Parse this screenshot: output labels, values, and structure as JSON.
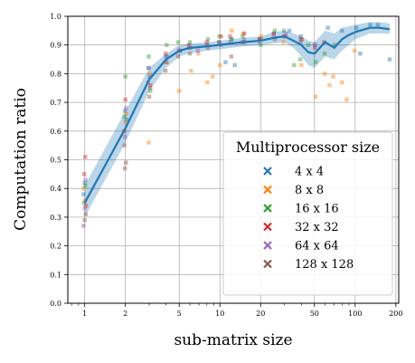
{
  "chart_data": {
    "type": "scatter",
    "xlabel": "sub-matrix size",
    "ylabel": "Computation ratio",
    "xscale": "log",
    "xlim": [
      0.75,
      210
    ],
    "ylim": [
      0,
      1
    ],
    "xticks": [
      1,
      2,
      5,
      10,
      20,
      50,
      100,
      200
    ],
    "xtick_labels": [
      "1",
      "2",
      "5",
      "10",
      "20",
      "50",
      "100",
      "200"
    ],
    "yticks": [
      0,
      0.1,
      0.2,
      0.3,
      0.4,
      0.5,
      0.6,
      0.7,
      0.8,
      0.9,
      1.0
    ],
    "ytick_labels": [
      "0.0",
      "0.1",
      "0.2",
      "0.3",
      "0.4",
      "0.5",
      "0.6",
      "0.7",
      "0.8",
      "0.9",
      "1.0"
    ],
    "grid": true,
    "legend": {
      "title": "Multiprocessor size",
      "placement": "lower-right",
      "marker": "x"
    },
    "series": [
      {
        "name": "4 x 4",
        "color": "#1f77b4",
        "points": [
          [
            1,
            0.38
          ],
          [
            1,
            0.42
          ],
          [
            2,
            0.64
          ],
          [
            2,
            0.67
          ],
          [
            3,
            0.79
          ],
          [
            3,
            0.82
          ],
          [
            4,
            0.86
          ],
          [
            5,
            0.88
          ],
          [
            6,
            0.89
          ],
          [
            8,
            0.9
          ],
          [
            10,
            0.91
          ],
          [
            11,
            0.84
          ],
          [
            12,
            0.92
          ],
          [
            13,
            0.83
          ],
          [
            15,
            0.91
          ],
          [
            20,
            0.92
          ],
          [
            25,
            0.94
          ],
          [
            32,
            0.95
          ],
          [
            40,
            0.93
          ],
          [
            50,
            0.9
          ],
          [
            64,
            0.96
          ],
          [
            80,
            0.95
          ],
          [
            100,
            0.96
          ],
          [
            110,
            0.87
          ],
          [
            128,
            0.97
          ],
          [
            150,
            0.97
          ],
          [
            180,
            0.85
          ]
        ]
      },
      {
        "name": "8 x 8",
        "color": "#ff7f0e",
        "points": [
          [
            1,
            0.36
          ],
          [
            1,
            0.4
          ],
          [
            2,
            0.63
          ],
          [
            2,
            0.66
          ],
          [
            3,
            0.56
          ],
          [
            3,
            0.8
          ],
          [
            4,
            0.84
          ],
          [
            5,
            0.74
          ],
          [
            6,
            0.81
          ],
          [
            7,
            0.87
          ],
          [
            8,
            0.77
          ],
          [
            9,
            0.79
          ],
          [
            10,
            0.83
          ],
          [
            12,
            0.95
          ],
          [
            15,
            0.94
          ],
          [
            20,
            0.93
          ],
          [
            30,
            0.91
          ],
          [
            40,
            0.83
          ],
          [
            50,
            0.72
          ],
          [
            60,
            0.8
          ],
          [
            64,
            0.76
          ],
          [
            70,
            0.79
          ],
          [
            80,
            0.77
          ],
          [
            85,
            0.71
          ],
          [
            100,
            0.88
          ]
        ]
      },
      {
        "name": "16 x 16",
        "color": "#2ca02c",
        "points": [
          [
            1,
            0.35
          ],
          [
            1,
            0.41
          ],
          [
            2,
            0.65
          ],
          [
            2,
            0.79
          ],
          [
            3,
            0.74
          ],
          [
            3,
            0.86
          ],
          [
            4,
            0.9
          ],
          [
            5,
            0.91
          ],
          [
            6,
            0.91
          ],
          [
            8,
            0.92
          ],
          [
            10,
            0.93
          ],
          [
            12,
            0.92
          ],
          [
            15,
            0.93
          ],
          [
            20,
            0.9
          ],
          [
            25,
            0.95
          ],
          [
            30,
            0.95
          ],
          [
            35,
            0.83
          ],
          [
            40,
            0.85
          ],
          [
            45,
            0.9
          ],
          [
            50,
            0.84
          ],
          [
            60,
            0.87
          ],
          [
            70,
            0.9
          ]
        ]
      },
      {
        "name": "32 x 32",
        "color": "#d62728",
        "points": [
          [
            1,
            0.34
          ],
          [
            1,
            0.45
          ],
          [
            1,
            0.51
          ],
          [
            2,
            0.6
          ],
          [
            2,
            0.71
          ],
          [
            3,
            0.76
          ],
          [
            4,
            0.87
          ],
          [
            5,
            0.88
          ],
          [
            6,
            0.9
          ],
          [
            8,
            0.91
          ],
          [
            10,
            0.93
          ],
          [
            12,
            0.93
          ],
          [
            15,
            0.94
          ],
          [
            20,
            0.92
          ],
          [
            25,
            0.94
          ],
          [
            30,
            0.93
          ],
          [
            40,
            0.92
          ],
          [
            50,
            0.89
          ],
          [
            60,
            0.91
          ]
        ]
      },
      {
        "name": "64 x 64",
        "color": "#9467bd",
        "points": [
          [
            1,
            0.33
          ],
          [
            1,
            0.43
          ],
          [
            2,
            0.58
          ],
          [
            2,
            0.68
          ],
          [
            3,
            0.77
          ],
          [
            3,
            0.82
          ],
          [
            4,
            0.86
          ],
          [
            5,
            0.88
          ],
          [
            6,
            0.89
          ],
          [
            7,
            0.88
          ],
          [
            8,
            0.9
          ],
          [
            10,
            0.9
          ],
          [
            12,
            0.91
          ],
          [
            15,
            0.92
          ],
          [
            20,
            0.91
          ],
          [
            25,
            0.93
          ],
          [
            30,
            0.94
          ],
          [
            40,
            0.91
          ],
          [
            50,
            0.9
          ]
        ]
      },
      {
        "name": "128 x 128",
        "color": "#8c564b",
        "points": [
          [
            1,
            0.27
          ],
          [
            1,
            0.29
          ],
          [
            1,
            0.31
          ],
          [
            2,
            0.47
          ],
          [
            2,
            0.49
          ],
          [
            2,
            0.55
          ],
          [
            3,
            0.72
          ],
          [
            3,
            0.75
          ],
          [
            4,
            0.81
          ],
          [
            4,
            0.84
          ],
          [
            5,
            0.86
          ],
          [
            6,
            0.87
          ],
          [
            8,
            0.89
          ],
          [
            10,
            0.91
          ],
          [
            12,
            0.86
          ],
          [
            15,
            0.91
          ],
          [
            20,
            0.92
          ],
          [
            25,
            0.92
          ],
          [
            30,
            0.93
          ],
          [
            40,
            0.92
          ]
        ]
      }
    ],
    "mean_line": {
      "color": "#1f77b4",
      "x": [
        1,
        2,
        3,
        4,
        5,
        6,
        8,
        10,
        12,
        15,
        20,
        25,
        30,
        35,
        40,
        45,
        50,
        60,
        70,
        80,
        90,
        100,
        128,
        150,
        180
      ],
      "y": [
        0.35,
        0.61,
        0.78,
        0.85,
        0.88,
        0.89,
        0.895,
        0.9,
        0.905,
        0.91,
        0.915,
        0.925,
        0.93,
        0.915,
        0.9,
        0.875,
        0.87,
        0.91,
        0.89,
        0.92,
        0.935,
        0.945,
        0.96,
        0.96,
        0.955
      ],
      "ci_low": [
        0.3,
        0.56,
        0.74,
        0.82,
        0.86,
        0.87,
        0.88,
        0.885,
        0.89,
        0.895,
        0.9,
        0.905,
        0.91,
        0.89,
        0.86,
        0.83,
        0.82,
        0.86,
        0.85,
        0.88,
        0.9,
        0.92,
        0.94,
        0.94,
        0.94
      ],
      "ci_high": [
        0.41,
        0.67,
        0.82,
        0.87,
        0.9,
        0.905,
        0.91,
        0.915,
        0.92,
        0.925,
        0.93,
        0.945,
        0.95,
        0.94,
        0.93,
        0.915,
        0.91,
        0.95,
        0.94,
        0.96,
        0.965,
        0.97,
        0.98,
        0.98,
        0.975
      ]
    }
  }
}
